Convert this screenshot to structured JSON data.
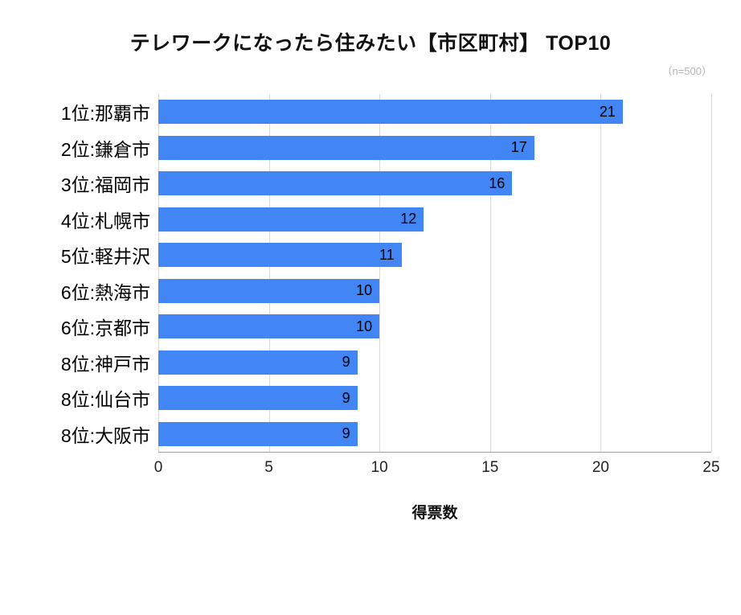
{
  "title": "テレワークになったら住みたい【市区町村】 TOP10",
  "sample_note": "（n=500）",
  "colors": {
    "bar": "#4285f4",
    "grid": "#d9d9d9",
    "axis": "#9e9e9e",
    "note_text": "#b5b5b5",
    "value_text": "#000000"
  },
  "chart_data": {
    "type": "bar",
    "orientation": "horizontal",
    "title": "テレワークになったら住みたい【市区町村】 TOP10",
    "subtitle": "（n=500）",
    "categories": [
      "1位:那覇市",
      "2位:鎌倉市",
      "3位:福岡市",
      "4位:札幌市",
      "5位:軽井沢",
      "6位:熱海市",
      "6位:京都市",
      "8位:神戸市",
      "8位:仙台市",
      "8位:大阪市"
    ],
    "values": [
      21,
      17,
      16,
      12,
      11,
      10,
      10,
      9,
      9,
      9
    ],
    "xlabel": "得票数",
    "ylabel": "",
    "xlim": [
      0,
      25
    ],
    "xticks": [
      0,
      5,
      10,
      15,
      20,
      25
    ],
    "grid": true,
    "legend": "none"
  }
}
